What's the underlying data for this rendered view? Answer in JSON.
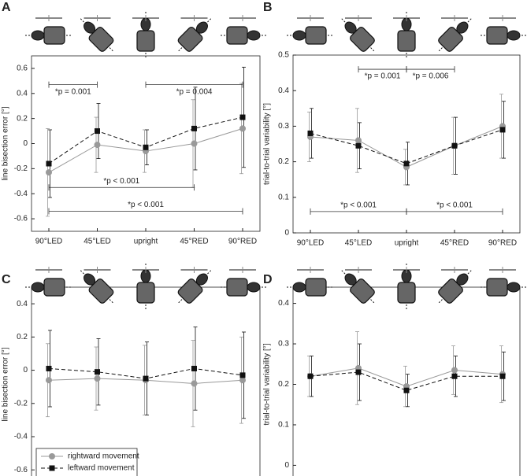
{
  "chart_data": [
    {
      "type": "line",
      "label": "A",
      "ylabel": "line bisection error [°]",
      "categories": [
        "90°LED",
        "45°LED",
        "upright",
        "45°RED",
        "90°RED"
      ],
      "ylim": [
        -0.7,
        0.7
      ],
      "yticks": [
        -0.6,
        -0.4,
        -0.2,
        0,
        0.2,
        0.4,
        0.6
      ],
      "series": [
        {
          "color": "#999999",
          "marker": "circle",
          "line_style": "solid",
          "values": [
            -0.23,
            -0.01,
            -0.06,
            0.0,
            0.12
          ],
          "errors": [
            0.35,
            0.22,
            0.17,
            0.35,
            0.36
          ]
        },
        {
          "color": "#111111",
          "marker": "square",
          "line_style": "dashed",
          "values": [
            -0.16,
            0.1,
            -0.03,
            0.12,
            0.21
          ],
          "errors": [
            0.27,
            0.22,
            0.14,
            0.33,
            0.4
          ]
        }
      ],
      "annotations": [
        {
          "text": "*p = 0.001",
          "from": "90°LED",
          "to": "45°LED",
          "y": 0.47
        },
        {
          "text": "*p = 0.004",
          "from": "upright",
          "to": "90°RED",
          "y": 0.47
        },
        {
          "text": "*p < 0.001",
          "from": "90°LED",
          "to": "45°RED",
          "y": -0.35
        },
        {
          "text": "*p < 0.001",
          "from": "90°LED",
          "to": "90°RED",
          "y": -0.54
        }
      ]
    },
    {
      "type": "line",
      "label": "B",
      "ylabel": "trial-to-trial variability [°]",
      "categories": [
        "90°LED",
        "45°LED",
        "upright",
        "45°RED",
        "90°RED"
      ],
      "ylim": [
        0,
        0.5
      ],
      "yticks": [
        0,
        0.1,
        0.2,
        0.3,
        0.4,
        0.5
      ],
      "series": [
        {
          "color": "#999999",
          "marker": "circle",
          "line_style": "solid",
          "values": [
            0.27,
            0.26,
            0.185,
            0.245,
            0.3
          ],
          "errors": [
            0.07,
            0.09,
            0.05,
            0.08,
            0.09
          ]
        },
        {
          "color": "#111111",
          "marker": "square",
          "line_style": "dashed",
          "values": [
            0.28,
            0.245,
            0.195,
            0.245,
            0.29
          ],
          "errors": [
            0.07,
            0.065,
            0.06,
            0.08,
            0.08
          ]
        }
      ],
      "annotations": [
        {
          "text": "*p = 0.001",
          "from": "45°LED",
          "to": "upright",
          "y": 0.46
        },
        {
          "text": "*p = 0.006",
          "from": "upright",
          "to": "45°RED",
          "y": 0.46
        },
        {
          "text": "*p < 0.001",
          "from": "90°LED",
          "to": "upright",
          "y": 0.06
        },
        {
          "text": "*p < 0.001",
          "from": "upright",
          "to": "90°RED",
          "y": 0.06
        }
      ]
    },
    {
      "type": "line",
      "label": "C",
      "ylabel": "line bisection error [°]",
      "categories": [
        "90°LED",
        "45°LED",
        "upright",
        "45°RED",
        "90°RED"
      ],
      "ylim": [
        -0.67,
        0.5
      ],
      "yticks": [
        -0.6,
        -0.4,
        -0.2,
        0,
        0.2,
        0.4
      ],
      "legend": "lower left",
      "series": [
        {
          "name": "rightward movement",
          "color": "#999999",
          "marker": "circle",
          "line_style": "solid",
          "values": [
            -0.06,
            -0.05,
            -0.06,
            -0.08,
            -0.06
          ],
          "errors": [
            0.22,
            0.19,
            0.21,
            0.26,
            0.26
          ]
        },
        {
          "name": "leftward movement",
          "color": "#111111",
          "marker": "square",
          "line_style": "dashed",
          "values": [
            0.01,
            -0.01,
            -0.05,
            0.01,
            -0.03
          ],
          "errors": [
            0.23,
            0.2,
            0.22,
            0.25,
            0.26
          ]
        }
      ]
    },
    {
      "type": "line",
      "label": "D",
      "ylabel": "trial-to-trial variability [°]",
      "categories": [
        "90°LED",
        "45°LED",
        "upright",
        "45°RED",
        "90°RED"
      ],
      "ylim": [
        -0.04,
        0.44
      ],
      "yticks": [
        0,
        0.1,
        0.2,
        0.3,
        0.4
      ],
      "series": [
        {
          "color": "#999999",
          "marker": "circle",
          "line_style": "solid",
          "values": [
            0.22,
            0.24,
            0.195,
            0.235,
            0.225
          ],
          "errors": [
            0.05,
            0.09,
            0.05,
            0.06,
            0.07
          ]
        },
        {
          "color": "#111111",
          "marker": "square",
          "line_style": "dashed",
          "values": [
            0.22,
            0.23,
            0.185,
            0.22,
            0.22
          ],
          "errors": [
            0.05,
            0.07,
            0.04,
            0.05,
            0.06
          ]
        }
      ]
    }
  ]
}
